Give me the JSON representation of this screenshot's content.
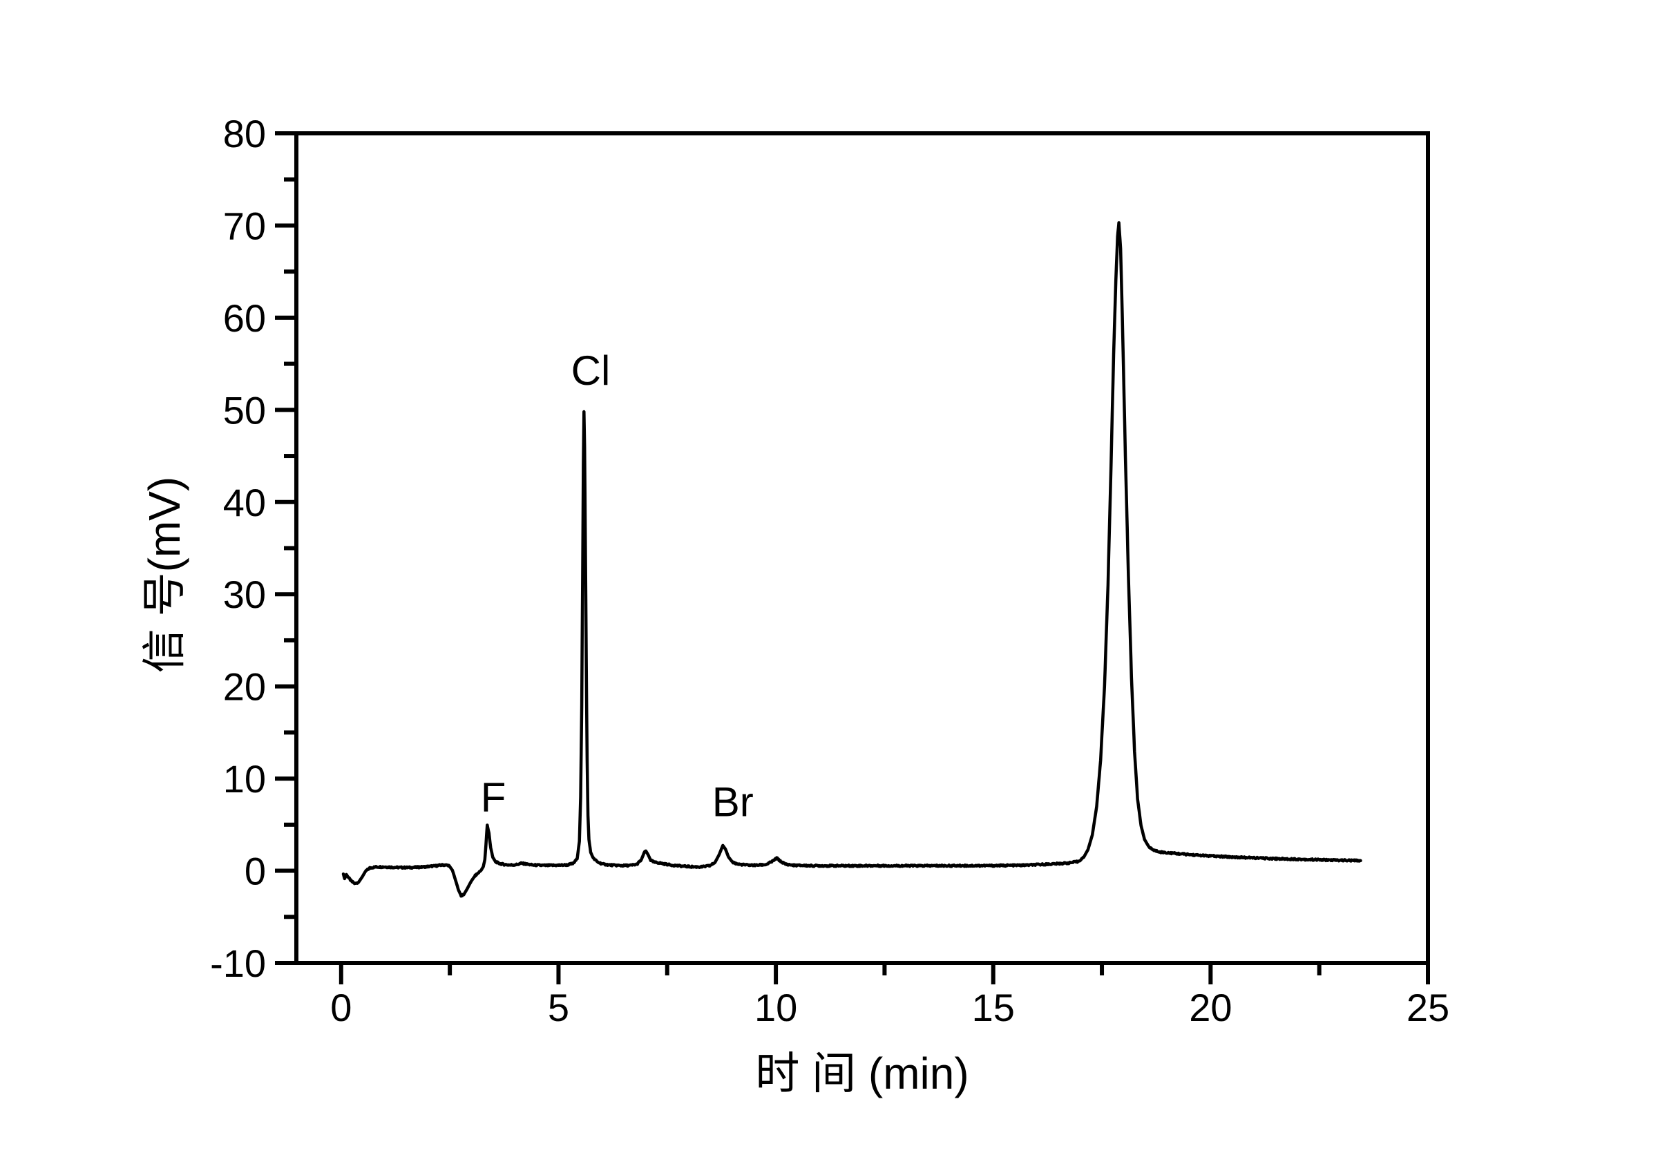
{
  "figure": {
    "background": "#ffffff",
    "axis_color": "#000000",
    "trace_color": "#000000",
    "text_color": "#000000"
  },
  "chart_data": {
    "type": "line",
    "title": "",
    "xlabel": "时 间 (min)",
    "ylabel": "信 号(mV)",
    "xlim": [
      -1.03,
      25
    ],
    "ylim": [
      -10,
      80
    ],
    "grid": false,
    "legend": null,
    "x_major_ticks": [
      0,
      5,
      10,
      15,
      20,
      25
    ],
    "x_minor_ticks": [
      2.5,
      7.5,
      12.5,
      17.5,
      22.5
    ],
    "y_major_ticks": [
      -10,
      0,
      10,
      20,
      30,
      40,
      50,
      60,
      70,
      80
    ],
    "y_minor_ticks": [
      -5,
      5,
      15,
      25,
      35,
      45,
      55,
      65,
      75
    ],
    "annotations": [
      {
        "text": "F",
        "x": 3.5,
        "y": 8.0
      },
      {
        "text": "Cl",
        "x": 5.74,
        "y": 54.3
      },
      {
        "text": "Br",
        "x": 9.01,
        "y": 7.5
      }
    ],
    "peaks": [
      {
        "label": "F",
        "retention_min": 3.37,
        "height_mV": 5.0
      },
      {
        "label": "Cl",
        "retention_min": 5.58,
        "height_mV": 49.8
      },
      {
        "label": "",
        "retention_min": 7.0,
        "height_mV": 2.2
      },
      {
        "label": "Br",
        "retention_min": 8.8,
        "height_mV": 2.8
      },
      {
        "label": "",
        "retention_min": 10.0,
        "height_mV": 1.4
      },
      {
        "label": "",
        "retention_min": 17.9,
        "height_mV": 70.3
      }
    ],
    "series": [
      {
        "name": "signal",
        "points": [
          [
            0.05,
            -0.35
          ],
          [
            0.08,
            -0.85
          ],
          [
            0.12,
            -0.4
          ],
          [
            0.17,
            -0.75
          ],
          [
            0.24,
            -1.15
          ],
          [
            0.32,
            -1.4
          ],
          [
            0.4,
            -1.25
          ],
          [
            0.48,
            -0.7
          ],
          [
            0.56,
            -0.05
          ],
          [
            0.66,
            0.3
          ],
          [
            0.8,
            0.42
          ],
          [
            1.0,
            0.42
          ],
          [
            1.3,
            0.36
          ],
          [
            1.6,
            0.35
          ],
          [
            1.9,
            0.42
          ],
          [
            2.15,
            0.52
          ],
          [
            2.35,
            0.64
          ],
          [
            2.48,
            0.58
          ],
          [
            2.56,
            0.05
          ],
          [
            2.63,
            -1.0
          ],
          [
            2.7,
            -2.1
          ],
          [
            2.76,
            -2.7
          ],
          [
            2.82,
            -2.6
          ],
          [
            2.9,
            -1.95
          ],
          [
            2.99,
            -1.15
          ],
          [
            3.07,
            -0.6
          ],
          [
            3.15,
            -0.25
          ],
          [
            3.22,
            0.05
          ],
          [
            3.27,
            0.45
          ],
          [
            3.305,
            1.2
          ],
          [
            3.33,
            2.8
          ],
          [
            3.36,
            4.95
          ],
          [
            3.4,
            4.1
          ],
          [
            3.44,
            2.5
          ],
          [
            3.49,
            1.45
          ],
          [
            3.55,
            1.0
          ],
          [
            3.63,
            0.8
          ],
          [
            3.75,
            0.68
          ],
          [
            3.9,
            0.62
          ],
          [
            4.05,
            0.68
          ],
          [
            4.15,
            0.82
          ],
          [
            4.26,
            0.72
          ],
          [
            4.42,
            0.62
          ],
          [
            4.7,
            0.58
          ],
          [
            5.0,
            0.6
          ],
          [
            5.2,
            0.63
          ],
          [
            5.34,
            0.8
          ],
          [
            5.43,
            1.3
          ],
          [
            5.48,
            3.2
          ],
          [
            5.51,
            8.0
          ],
          [
            5.535,
            18
          ],
          [
            5.555,
            32
          ],
          [
            5.572,
            44
          ],
          [
            5.585,
            49.8
          ],
          [
            5.6,
            46
          ],
          [
            5.618,
            36
          ],
          [
            5.638,
            23
          ],
          [
            5.658,
            12
          ],
          [
            5.678,
            6.0
          ],
          [
            5.7,
            3.4
          ],
          [
            5.74,
            2.0
          ],
          [
            5.8,
            1.35
          ],
          [
            5.9,
            0.95
          ],
          [
            6.02,
            0.72
          ],
          [
            6.2,
            0.62
          ],
          [
            6.45,
            0.56
          ],
          [
            6.65,
            0.58
          ],
          [
            6.8,
            0.7
          ],
          [
            6.9,
            1.15
          ],
          [
            6.97,
            1.95
          ],
          [
            7.01,
            2.15
          ],
          [
            7.06,
            1.75
          ],
          [
            7.12,
            1.15
          ],
          [
            7.2,
            0.92
          ],
          [
            7.3,
            0.88
          ],
          [
            7.42,
            0.75
          ],
          [
            7.6,
            0.62
          ],
          [
            7.85,
            0.5
          ],
          [
            8.1,
            0.43
          ],
          [
            8.3,
            0.42
          ],
          [
            8.48,
            0.55
          ],
          [
            8.6,
            0.9
          ],
          [
            8.7,
            1.8
          ],
          [
            8.78,
            2.75
          ],
          [
            8.84,
            2.35
          ],
          [
            8.91,
            1.5
          ],
          [
            9.0,
            0.95
          ],
          [
            9.12,
            0.72
          ],
          [
            9.3,
            0.63
          ],
          [
            9.55,
            0.6
          ],
          [
            9.78,
            0.68
          ],
          [
            9.93,
            1.05
          ],
          [
            10.02,
            1.38
          ],
          [
            10.1,
            1.05
          ],
          [
            10.22,
            0.72
          ],
          [
            10.4,
            0.6
          ],
          [
            10.8,
            0.55
          ],
          [
            11.5,
            0.54
          ],
          [
            12.3,
            0.55
          ],
          [
            13.2,
            0.54
          ],
          [
            14.1,
            0.55
          ],
          [
            15.0,
            0.56
          ],
          [
            15.7,
            0.6
          ],
          [
            16.1,
            0.68
          ],
          [
            16.45,
            0.76
          ],
          [
            16.75,
            0.85
          ],
          [
            16.95,
            1.0
          ],
          [
            17.08,
            1.45
          ],
          [
            17.18,
            2.3
          ],
          [
            17.28,
            3.9
          ],
          [
            17.38,
            7.0
          ],
          [
            17.47,
            12.0
          ],
          [
            17.56,
            20.0
          ],
          [
            17.64,
            31.0
          ],
          [
            17.71,
            44.0
          ],
          [
            17.77,
            56.0
          ],
          [
            17.82,
            64.0
          ],
          [
            17.86,
            68.8
          ],
          [
            17.89,
            70.3
          ],
          [
            17.93,
            67.5
          ],
          [
            17.98,
            58.0
          ],
          [
            18.04,
            45.0
          ],
          [
            18.11,
            32.0
          ],
          [
            18.18,
            21.0
          ],
          [
            18.25,
            13.0
          ],
          [
            18.32,
            7.8
          ],
          [
            18.4,
            4.9
          ],
          [
            18.48,
            3.4
          ],
          [
            18.58,
            2.6
          ],
          [
            18.7,
            2.2
          ],
          [
            18.9,
            2.0
          ],
          [
            19.2,
            1.88
          ],
          [
            19.6,
            1.72
          ],
          [
            20.1,
            1.58
          ],
          [
            20.7,
            1.45
          ],
          [
            21.4,
            1.33
          ],
          [
            22.1,
            1.24
          ],
          [
            22.8,
            1.16
          ],
          [
            23.45,
            1.1
          ]
        ]
      }
    ]
  }
}
